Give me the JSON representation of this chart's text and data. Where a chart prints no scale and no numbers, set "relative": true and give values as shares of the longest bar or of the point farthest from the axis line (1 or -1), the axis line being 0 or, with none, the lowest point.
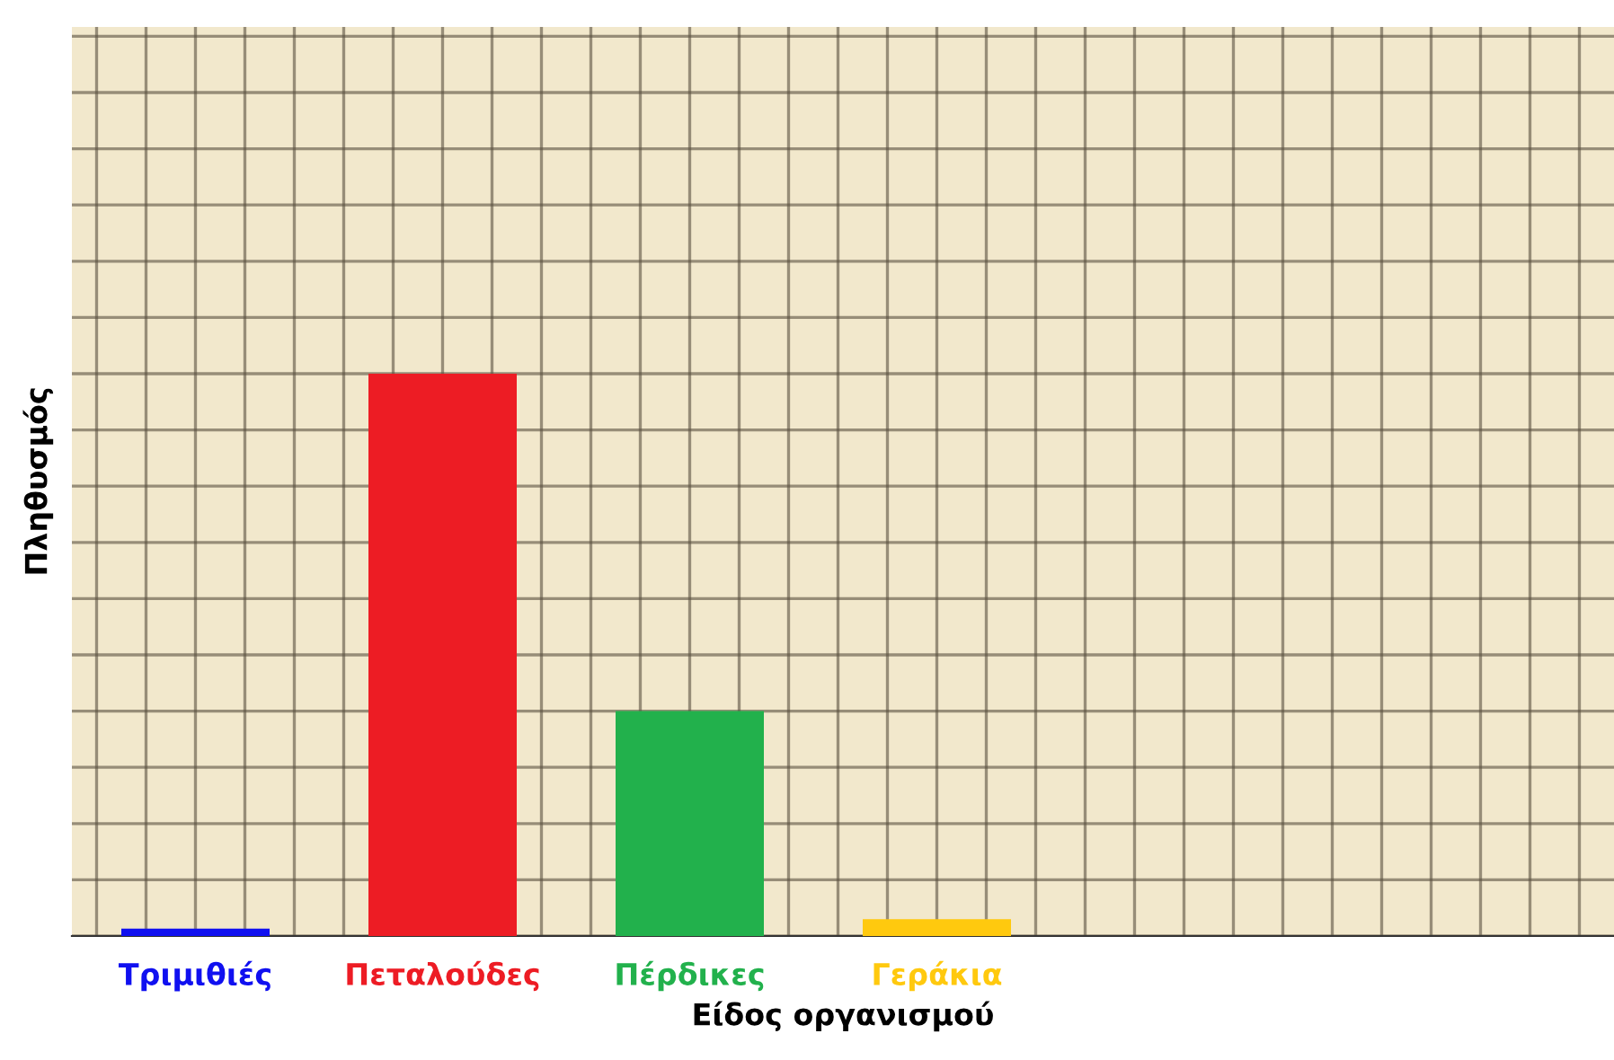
{
  "chart_data": {
    "type": "bar",
    "relative": true,
    "xlabel": "Είδος οργανισμού",
    "ylabel": "Πληθυσμός",
    "categories": [
      "Τριμιθιές",
      "Πεταλούδες",
      "Πέρδικες",
      "Γεράκια"
    ],
    "values": [
      0.013,
      1,
      0.4,
      0.03
    ],
    "colors": [
      "#1010f0",
      "#ed1c24",
      "#22b14c",
      "#ffc90e"
    ],
    "grid": true,
    "legend": false
  }
}
